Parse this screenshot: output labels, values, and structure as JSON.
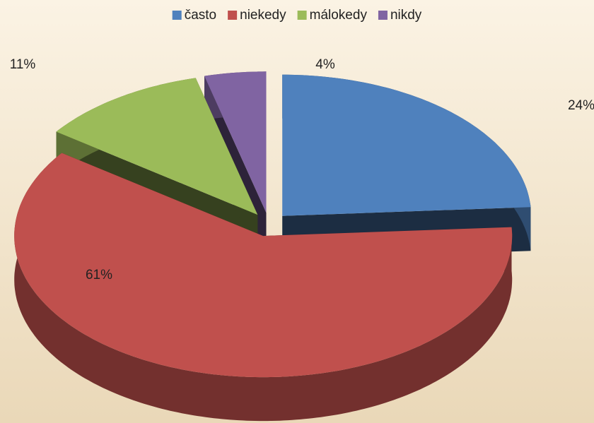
{
  "chart_data": {
    "type": "pie3d",
    "categories": [
      "často",
      "niekedy",
      "málokedy",
      "nikdy"
    ],
    "values": [
      24,
      61,
      11,
      4
    ],
    "value_labels": [
      "24%",
      "61%",
      "11%",
      "4%"
    ],
    "colors": [
      "#4f81bd",
      "#c0504d",
      "#9bbb59",
      "#8064a2"
    ],
    "legend": "top"
  }
}
